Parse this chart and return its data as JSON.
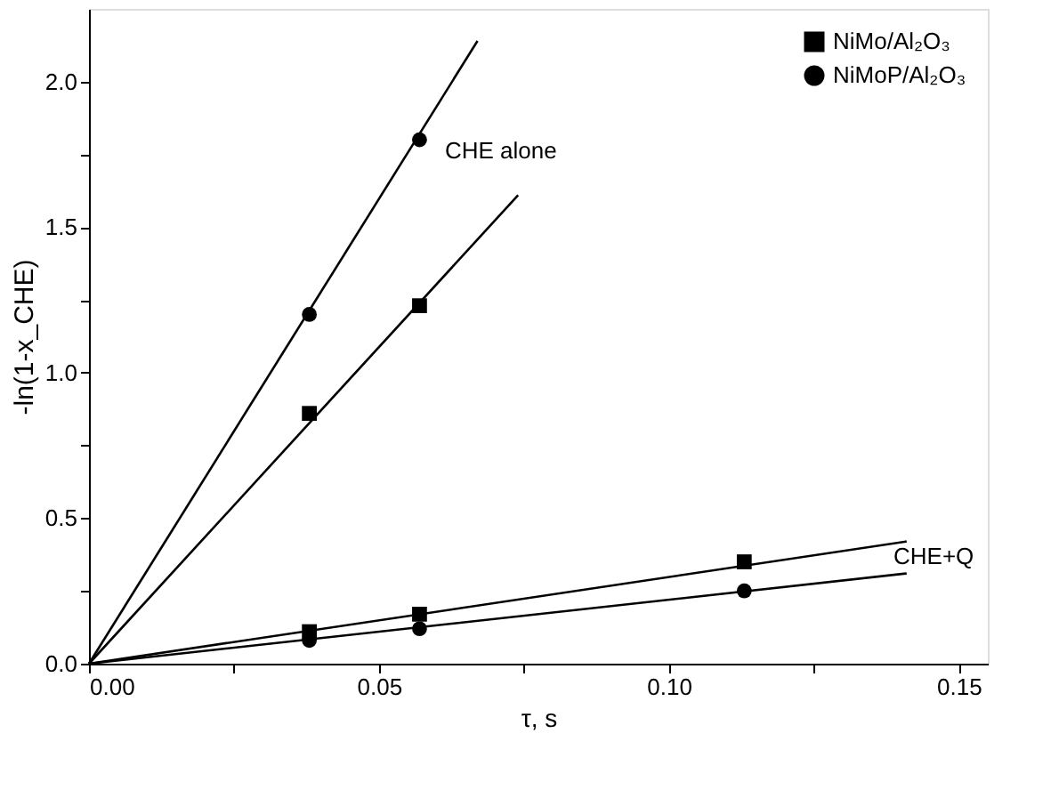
{
  "chart_data": {
    "type": "scatter",
    "xlabel": "τ, s",
    "ylabel": "-ln(1-x_CHE)",
    "xlim": [
      0,
      0.155
    ],
    "ylim": [
      0,
      2.25
    ],
    "xticks": [
      {
        "value": 0,
        "label": "0.00"
      },
      {
        "value": 0.025,
        "label": null
      },
      {
        "value": 0.05,
        "label": "0.05"
      },
      {
        "value": 0.075,
        "label": null
      },
      {
        "value": 0.1,
        "label": "0.10"
      },
      {
        "value": 0.125,
        "label": null
      },
      {
        "value": 0.15,
        "label": "0.15"
      }
    ],
    "yticks": [
      {
        "value": 0,
        "label": "0.0"
      },
      {
        "value": 0.25,
        "label": null
      },
      {
        "value": 0.5,
        "label": "0.5"
      },
      {
        "value": 0.75,
        "label": null
      },
      {
        "value": 1,
        "label": "1.0"
      },
      {
        "value": 1.25,
        "label": null
      },
      {
        "value": 1.5,
        "label": "1.5"
      },
      {
        "value": 1.75,
        "label": null
      },
      {
        "value": 2,
        "label": "2.0"
      }
    ],
    "series": [
      {
        "name": "NiMo/Al₂O₃",
        "color": "#000000",
        "marker": "square",
        "x": [
          0.038,
          0.057,
          0.038,
          0.057,
          0.113
        ],
        "values": [
          0.86,
          1.23,
          0.11,
          0.17,
          0.35
        ]
      },
      {
        "name": "NiMoP/Al₂O₃",
        "color": "#000000",
        "marker": "circle",
        "x": [
          0.038,
          0.057,
          0.038,
          0.057,
          0.113
        ],
        "values": [
          1.2,
          1.8,
          0.08,
          0.12,
          0.25
        ]
      },
      {
        "type": "line",
        "color": "#000000",
        "marker": "none",
        "x": [
          0,
          0.067
        ],
        "values": [
          0,
          2.14
        ]
      },
      {
        "type": "line",
        "color": "#000000",
        "marker": "none",
        "x": [
          0,
          0.074
        ],
        "values": [
          0,
          1.61
        ]
      },
      {
        "type": "line",
        "color": "#000000",
        "marker": "none",
        "x": [
          0,
          0.141
        ],
        "values": [
          0,
          0.42
        ]
      },
      {
        "type": "line",
        "color": "#000000",
        "marker": "none",
        "x": [
          0,
          0.141
        ],
        "values": [
          0,
          0.31
        ]
      }
    ],
    "annotations": [
      "CHE alone",
      "CHE+Q"
    ],
    "grid": false,
    "legend": "top right"
  }
}
